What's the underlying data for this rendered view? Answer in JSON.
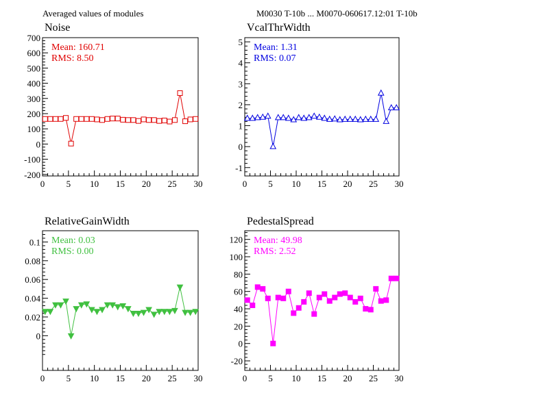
{
  "header": {
    "left": "Averaged values of modules",
    "right": "M0030 T-10b ... M0070-060617.12:01 T-10b"
  },
  "chart_data": [
    {
      "type": "line",
      "title": "Noise",
      "color": "#e00000",
      "marker": "open-square",
      "stats": {
        "mean_label": "Mean:",
        "mean": "160.71",
        "rms_label": "RMS:",
        "rms": "8.50"
      },
      "xlim": [
        0,
        30
      ],
      "ylim": [
        -210,
        700
      ],
      "xticks": [
        0,
        5,
        10,
        15,
        20,
        25,
        30
      ],
      "yticks": [
        -200,
        -100,
        0,
        100,
        200,
        300,
        400,
        500,
        600,
        700
      ],
      "x": [
        0.5,
        1.5,
        2.5,
        3.5,
        4.5,
        5.5,
        6.5,
        7.5,
        8.5,
        9.5,
        10.5,
        11.5,
        12.5,
        13.5,
        14.5,
        15.5,
        16.5,
        17.5,
        18.5,
        19.5,
        20.5,
        21.5,
        22.5,
        23.5,
        24.5,
        25.5,
        26.5,
        27.5,
        28.5,
        29.5
      ],
      "values": [
        165,
        165,
        165,
        165,
        172,
        3,
        165,
        165,
        165,
        165,
        162,
        158,
        165,
        168,
        168,
        160,
        158,
        158,
        152,
        162,
        158,
        158,
        152,
        155,
        148,
        158,
        335,
        150,
        162,
        165
      ]
    },
    {
      "type": "line",
      "title": "VcalThrWidth",
      "color": "#0000e0",
      "marker": "open-triangle-up",
      "stats": {
        "mean_label": "Mean:",
        "mean": "1.31",
        "rms_label": "RMS:",
        "rms": "0.07"
      },
      "xlim": [
        0,
        30
      ],
      "ylim": [
        -1.4,
        5.2
      ],
      "xticks": [
        0,
        5,
        10,
        15,
        20,
        25,
        30
      ],
      "yticks": [
        -1,
        0,
        1,
        2,
        3,
        4,
        5
      ],
      "x": [
        0.5,
        1.5,
        2.5,
        3.5,
        4.5,
        5.5,
        6.5,
        7.5,
        8.5,
        9.5,
        10.5,
        11.5,
        12.5,
        13.5,
        14.5,
        15.5,
        16.5,
        17.5,
        18.5,
        19.5,
        20.5,
        21.5,
        22.5,
        23.5,
        24.5,
        25.5,
        26.5,
        27.5,
        28.5,
        29.5
      ],
      "values": [
        1.35,
        1.35,
        1.38,
        1.4,
        1.45,
        0.0,
        1.38,
        1.38,
        1.35,
        1.28,
        1.38,
        1.35,
        1.38,
        1.45,
        1.4,
        1.35,
        1.3,
        1.32,
        1.28,
        1.3,
        1.3,
        1.3,
        1.28,
        1.3,
        1.3,
        1.3,
        2.55,
        1.2,
        1.85,
        1.85
      ]
    },
    {
      "type": "line",
      "title": "RelativeGainWidth",
      "color": "#40c040",
      "marker": "filled-triangle-down",
      "stats": {
        "mean_label": "Mean:",
        "mean": "0.03",
        "rms_label": "RMS:",
        "rms": "0.00"
      },
      "xlim": [
        0,
        30
      ],
      "ylim": [
        -0.037,
        0.112
      ],
      "xticks": [
        0,
        5,
        10,
        15,
        20,
        25,
        30
      ],
      "yticks": [
        0,
        0.02,
        0.04,
        0.06,
        0.08,
        0.1
      ],
      "x": [
        0.5,
        1.5,
        2.5,
        3.5,
        4.5,
        5.5,
        6.5,
        7.5,
        8.5,
        9.5,
        10.5,
        11.5,
        12.5,
        13.5,
        14.5,
        15.5,
        16.5,
        17.5,
        18.5,
        19.5,
        20.5,
        21.5,
        22.5,
        23.5,
        24.5,
        25.5,
        26.5,
        27.5,
        28.5,
        29.5
      ],
      "values": [
        0.026,
        0.026,
        0.033,
        0.033,
        0.037,
        0.0,
        0.029,
        0.033,
        0.034,
        0.028,
        0.026,
        0.028,
        0.033,
        0.033,
        0.031,
        0.032,
        0.029,
        0.024,
        0.024,
        0.025,
        0.028,
        0.023,
        0.026,
        0.026,
        0.026,
        0.027,
        0.052,
        0.025,
        0.025,
        0.026
      ]
    },
    {
      "type": "line",
      "title": "PedestalSpread",
      "color": "#ff00ff",
      "marker": "filled-square",
      "stats": {
        "mean_label": "Mean:",
        "mean": "49.98",
        "rms_label": "RMS:",
        "rms": "2.52"
      },
      "xlim": [
        0,
        30
      ],
      "ylim": [
        -31,
        130
      ],
      "xticks": [
        0,
        5,
        10,
        15,
        20,
        25,
        30
      ],
      "yticks": [
        -20,
        0,
        20,
        40,
        60,
        80,
        100,
        120
      ],
      "x": [
        0.5,
        1.5,
        2.5,
        3.5,
        4.5,
        5.5,
        6.5,
        7.5,
        8.5,
        9.5,
        10.5,
        11.5,
        12.5,
        13.5,
        14.5,
        15.5,
        16.5,
        17.5,
        18.5,
        19.5,
        20.5,
        21.5,
        22.5,
        23.5,
        24.5,
        25.5,
        26.5,
        27.5,
        28.5,
        29.5
      ],
      "values": [
        50,
        44,
        65,
        63,
        52,
        0,
        53,
        52,
        60,
        35,
        41,
        48,
        58,
        34,
        53,
        57,
        49,
        53,
        57,
        58,
        53,
        48,
        52,
        40,
        39,
        63,
        49,
        50,
        75,
        75
      ]
    }
  ]
}
